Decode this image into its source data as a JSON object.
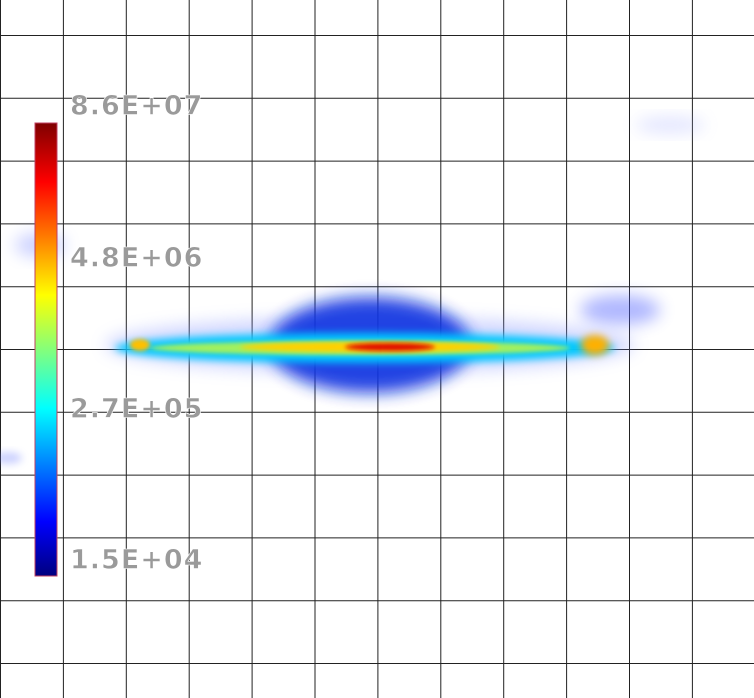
{
  "colorbar": {
    "labels": [
      "8.6E+07",
      "4.8E+06",
      "2.7E+05",
      "1.5E+04"
    ]
  }
}
